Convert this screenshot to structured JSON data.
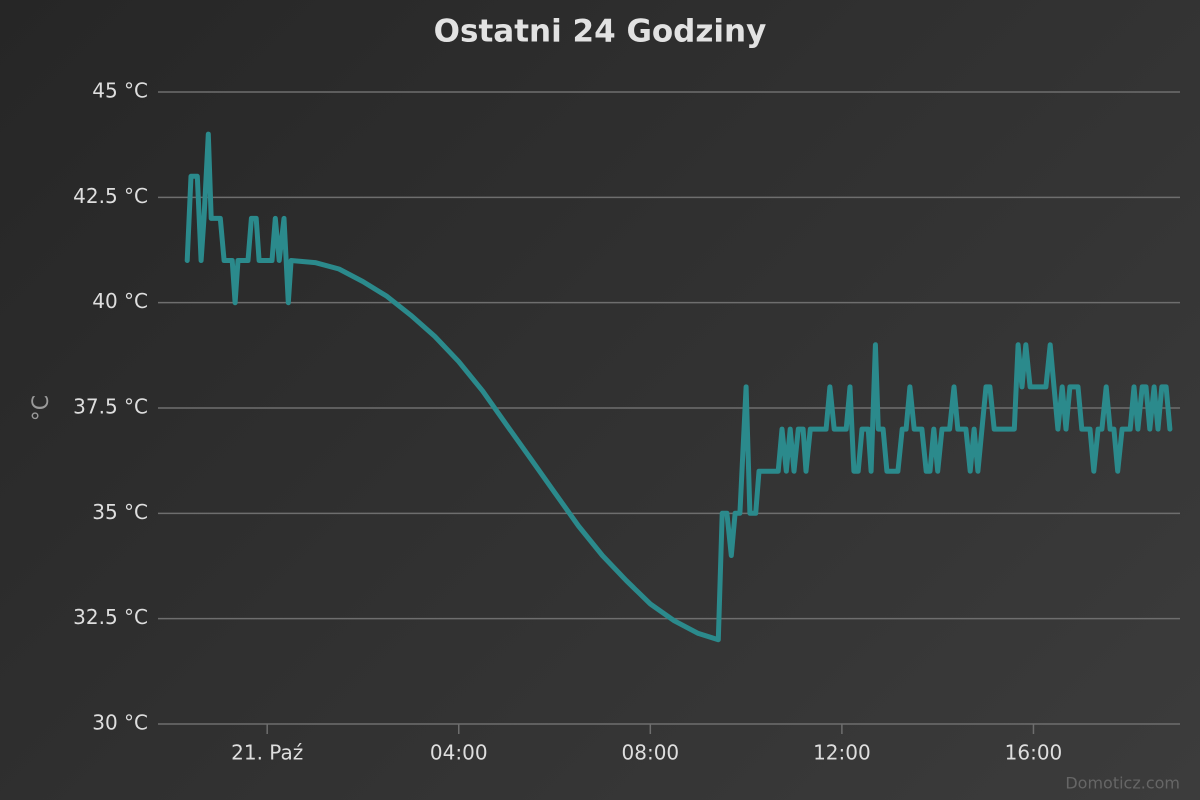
{
  "chart_data": {
    "type": "line",
    "title": "Ostatni 24 Godziny",
    "y_label": "°C",
    "credits": "Domoticz.com",
    "xlim": [
      -2.28,
      19.06
    ],
    "xticks": [
      {
        "value": 0,
        "label": "21. Paź"
      },
      {
        "value": 4,
        "label": "04:00"
      },
      {
        "value": 8,
        "label": "08:00"
      },
      {
        "value": 12,
        "label": "12:00"
      },
      {
        "value": 16,
        "label": "16:00"
      }
    ],
    "ylim": [
      30,
      45
    ],
    "yticks": [
      {
        "value": 30,
        "label": "30 °C"
      },
      {
        "value": 32.5,
        "label": "32.5 °C"
      },
      {
        "value": 35,
        "label": "35 °C"
      },
      {
        "value": 37.5,
        "label": "37.5 °C"
      },
      {
        "value": 40,
        "label": "40 °C"
      },
      {
        "value": 42.5,
        "label": "42.5 °C"
      },
      {
        "value": 45,
        "label": "45 °C"
      }
    ],
    "grid": true,
    "x": [
      -1.67,
      -1.59,
      -1.46,
      -1.38,
      -1.32,
      -1.23,
      -1.17,
      -0.98,
      -0.9,
      -0.73,
      -0.67,
      -0.61,
      -0.4,
      -0.33,
      -0.23,
      -0.17,
      0.1,
      0.17,
      0.25,
      0.35,
      0.44,
      0.5,
      1,
      1.5,
      2,
      2.5,
      3,
      3.5,
      4,
      4.5,
      5,
      5.5,
      6,
      6.5,
      7,
      7.5,
      8,
      8.5,
      9,
      9.42,
      9.5,
      9.6,
      9.69,
      9.77,
      9.87,
      10,
      10.08,
      10.2,
      10.27,
      10.67,
      10.75,
      10.84,
      10.92,
      11,
      11.09,
      11.19,
      11.25,
      11.34,
      11.67,
      11.75,
      11.84,
      12.09,
      12.17,
      12.25,
      12.34,
      12.42,
      12.55,
      12.61,
      12.7,
      12.76,
      12.86,
      12.94,
      13.17,
      13.26,
      13.34,
      13.42,
      13.51,
      13.67,
      13.76,
      13.84,
      13.92,
      14,
      14.09,
      14.25,
      14.34,
      14.42,
      14.59,
      14.68,
      14.76,
      14.84,
      15.01,
      15.09,
      15.18,
      15.6,
      15.68,
      15.76,
      15.84,
      15.93,
      16.26,
      16.35,
      16.43,
      16.51,
      16.6,
      16.68,
      16.76,
      16.93,
      17.01,
      17.18,
      17.26,
      17.35,
      17.43,
      17.52,
      17.6,
      17.68,
      17.76,
      17.85,
      18.02,
      18.1,
      18.18,
      18.27,
      18.35,
      18.43,
      18.52,
      18.6,
      18.68,
      18.77,
      18.85
    ],
    "series": [
      {
        "color": "#2b8a8c",
        "values": [
          41,
          43,
          43,
          41,
          42,
          44,
          42,
          42,
          41,
          41,
          40,
          41,
          41,
          42,
          42,
          41,
          41,
          42,
          41,
          42,
          40,
          41,
          40.95,
          40.8,
          40.5,
          40.15,
          39.7,
          39.2,
          38.6,
          37.9,
          37.1,
          36.3,
          35.5,
          34.7,
          34,
          33.4,
          32.85,
          32.45,
          32.15,
          32,
          35,
          35,
          34,
          35,
          35,
          38,
          35,
          35,
          36,
          36,
          37,
          36,
          37,
          36,
          37,
          37,
          36,
          37,
          37,
          38,
          37,
          37,
          38,
          36,
          36,
          37,
          37,
          36,
          39,
          37,
          37,
          36,
          36,
          37,
          37,
          38,
          37,
          37,
          36,
          36,
          37,
          36,
          37,
          37,
          38,
          37,
          37,
          36,
          37,
          36,
          38,
          38,
          37,
          37,
          39,
          38,
          39,
          38,
          38,
          39,
          38,
          37,
          38,
          37,
          38,
          38,
          37,
          37,
          36,
          37,
          37,
          38,
          37,
          37,
          36,
          37,
          37,
          38,
          37,
          38,
          38,
          37,
          38,
          37,
          38,
          38,
          37
        ]
      }
    ]
  }
}
